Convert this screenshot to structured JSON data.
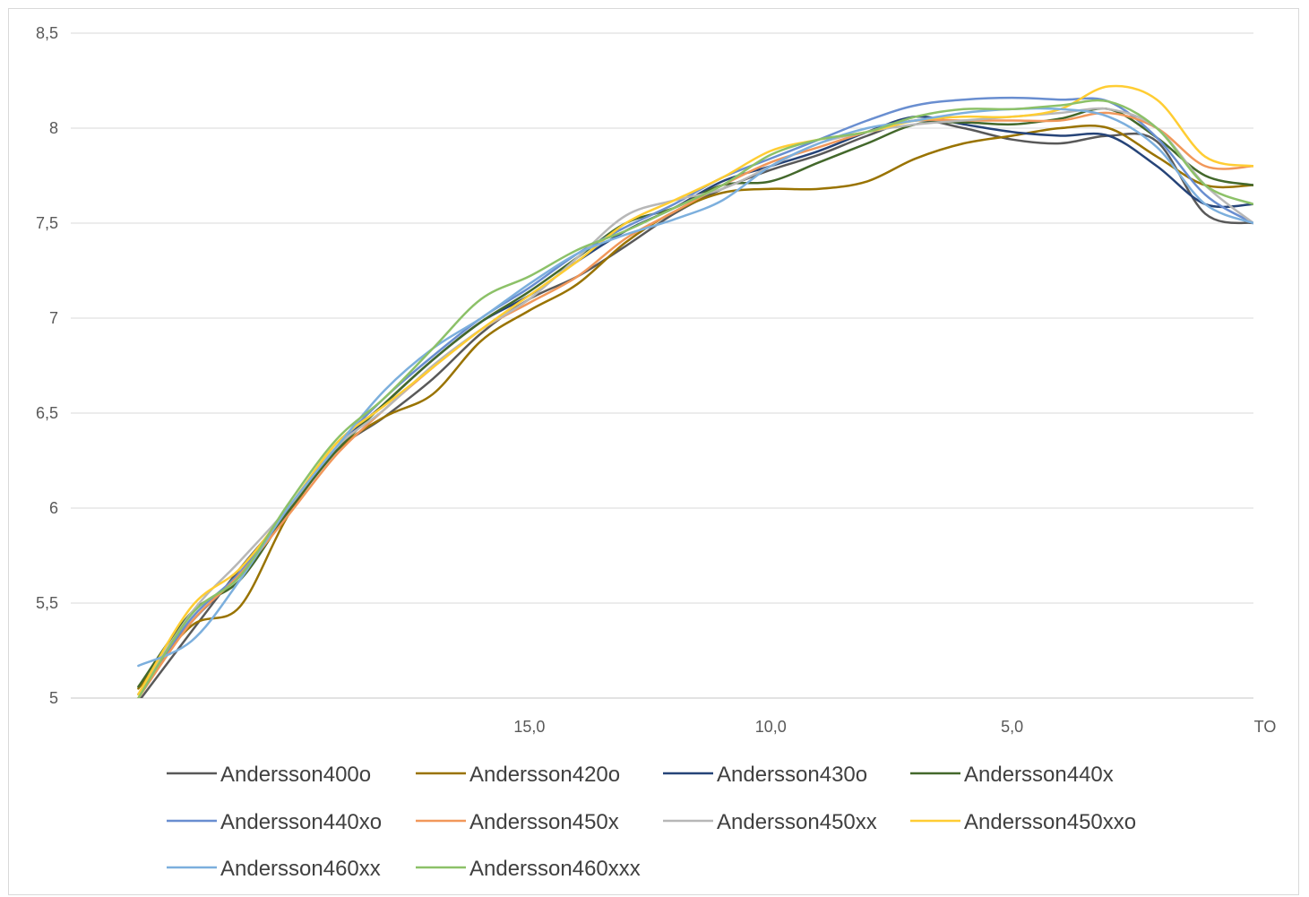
{
  "chart_data": {
    "type": "line",
    "title": "",
    "xlabel": "",
    "ylabel": "",
    "ylim": [
      5,
      8.5
    ],
    "xlim": [
      24.5,
      0
    ],
    "x_ticks": [
      {
        "value": 15,
        "label": "15,0"
      },
      {
        "value": 10,
        "label": "10,0"
      },
      {
        "value": 5,
        "label": "5,0"
      },
      {
        "value": 0,
        "label": "TO"
      }
    ],
    "y_ticks": [
      {
        "value": 8.5,
        "label": "8,5"
      },
      {
        "value": 8,
        "label": "8"
      },
      {
        "value": 7.5,
        "label": "7,5"
      },
      {
        "value": 7,
        "label": "7"
      },
      {
        "value": 6.5,
        "label": "6,5"
      },
      {
        "value": 6,
        "label": "6"
      },
      {
        "value": 5.5,
        "label": "5,5"
      },
      {
        "value": 5,
        "label": "5"
      }
    ],
    "grid": "horizontal",
    "legend_position": "bottom",
    "x": [
      23.1,
      22.0,
      21.0,
      20.0,
      19.0,
      18.0,
      17.0,
      16.0,
      15.0,
      14.0,
      13.0,
      12.0,
      11.0,
      10.0,
      9.0,
      8.0,
      7.0,
      6.0,
      5.0,
      4.0,
      3.0,
      2.0,
      1.0,
      0.0
    ],
    "series": [
      {
        "name": "Andersson400o",
        "color": "#595959",
        "values": [
          4.98,
          5.35,
          5.68,
          5.98,
          6.3,
          6.48,
          6.68,
          6.92,
          7.1,
          7.22,
          7.38,
          7.55,
          7.68,
          7.78,
          7.86,
          7.96,
          8.04,
          8.0,
          7.94,
          7.92,
          7.96,
          7.93,
          7.55,
          7.5
        ]
      },
      {
        "name": "Andersson420o",
        "color": "#997300",
        "values": [
          5.05,
          5.38,
          5.48,
          5.96,
          6.3,
          6.48,
          6.6,
          6.88,
          7.04,
          7.18,
          7.4,
          7.56,
          7.66,
          7.68,
          7.68,
          7.72,
          7.84,
          7.92,
          7.96,
          8.0,
          8.0,
          7.85,
          7.7,
          7.7
        ]
      },
      {
        "name": "Andersson430o",
        "color": "#264478",
        "values": [
          5.02,
          5.4,
          5.65,
          5.98,
          6.32,
          6.55,
          6.78,
          6.98,
          7.12,
          7.3,
          7.46,
          7.58,
          7.72,
          7.8,
          7.88,
          7.98,
          8.06,
          8.02,
          7.98,
          7.96,
          7.96,
          7.8,
          7.6,
          7.6
        ]
      },
      {
        "name": "Andersson440x",
        "color": "#43682b",
        "values": [
          5.06,
          5.45,
          5.62,
          5.98,
          6.3,
          6.55,
          6.78,
          6.98,
          7.14,
          7.32,
          7.5,
          7.58,
          7.7,
          7.72,
          7.82,
          7.92,
          8.02,
          8.03,
          8.02,
          8.05,
          8.1,
          7.95,
          7.75,
          7.7
        ]
      },
      {
        "name": "Andersson440xo",
        "color": "#698ed0",
        "values": [
          5.02,
          5.42,
          5.66,
          6.0,
          6.32,
          6.58,
          6.8,
          7.0,
          7.16,
          7.34,
          7.48,
          7.6,
          7.74,
          7.84,
          7.94,
          8.04,
          8.12,
          8.15,
          8.16,
          8.15,
          8.14,
          7.95,
          7.65,
          7.5
        ]
      },
      {
        "name": "Andersson450x",
        "color": "#f1975a",
        "values": [
          5.0,
          5.4,
          5.65,
          5.96,
          6.28,
          6.52,
          6.74,
          6.94,
          7.08,
          7.22,
          7.42,
          7.56,
          7.7,
          7.82,
          7.9,
          7.98,
          8.04,
          8.04,
          8.04,
          8.04,
          8.08,
          8.0,
          7.8,
          7.8
        ]
      },
      {
        "name": "Andersson450xx",
        "color": "#b7b7b7",
        "values": [
          5.02,
          5.45,
          5.72,
          6.0,
          6.32,
          6.52,
          6.75,
          6.94,
          7.1,
          7.32,
          7.54,
          7.62,
          7.68,
          7.8,
          7.92,
          7.98,
          8.02,
          8.04,
          8.06,
          8.08,
          8.1,
          8.0,
          7.7,
          7.5
        ]
      },
      {
        "name": "Andersson450xxo",
        "color": "#ffcd33",
        "values": [
          5.02,
          5.48,
          5.68,
          6.0,
          6.34,
          6.54,
          6.74,
          6.94,
          7.12,
          7.3,
          7.5,
          7.62,
          7.74,
          7.88,
          7.94,
          7.98,
          8.04,
          8.06,
          8.06,
          8.1,
          8.22,
          8.15,
          7.85,
          7.8
        ]
      },
      {
        "name": "Andersson460xx",
        "color": "#7cafdd",
        "values": [
          5.17,
          5.3,
          5.62,
          6.0,
          6.32,
          6.62,
          6.84,
          7.0,
          7.18,
          7.34,
          7.44,
          7.52,
          7.62,
          7.8,
          7.92,
          8.0,
          8.04,
          8.08,
          8.1,
          8.1,
          8.06,
          7.9,
          7.6,
          7.5
        ]
      },
      {
        "name": "Andersson460xxx",
        "color": "#8cc168",
        "values": [
          5.0,
          5.44,
          5.64,
          6.02,
          6.36,
          6.58,
          6.84,
          7.1,
          7.22,
          7.36,
          7.46,
          7.58,
          7.7,
          7.86,
          7.94,
          7.98,
          8.06,
          8.1,
          8.1,
          8.12,
          8.14,
          8.0,
          7.7,
          7.6
        ]
      }
    ]
  }
}
